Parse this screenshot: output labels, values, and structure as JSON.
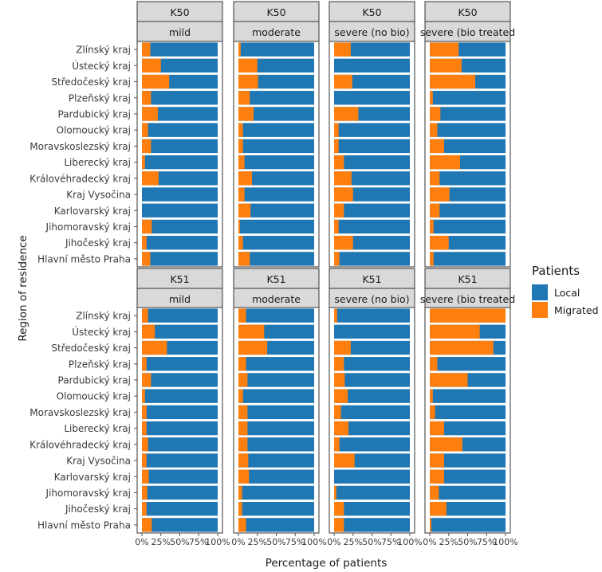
{
  "chart_data": {
    "type": "bar",
    "orientation": "horizontal",
    "stacked": true,
    "xlabel": "Percentage of patients",
    "ylabel": "Region of residence",
    "xlim": [
      0,
      100
    ],
    "x_tick_labels": [
      "0%",
      "25%",
      "50%",
      "75%",
      "100%"
    ],
    "legend": {
      "title": "Patients",
      "position": "right",
      "entries": [
        {
          "name": "Local",
          "color": "#1f77b4"
        },
        {
          "name": "Migrated",
          "color": "#ff7f0e"
        }
      ]
    },
    "categories": [
      "Zlínský kraj",
      "Ústecký kraj",
      "Středočeský kraj",
      "Plzeňský kraj",
      "Pardubický kraj",
      "Olomoucký kraj",
      "Moravskoslezský kraj",
      "Liberecký kraj",
      "Královéhradecký kraj",
      "Kraj Vysočina",
      "Karlovarský kraj",
      "Jihomoravský kraj",
      "Jihočeský kraj",
      "Hlavní město Praha"
    ],
    "value_series": "Migrated",
    "facets": [
      {
        "row_label": "K50",
        "col_label": "mild",
        "migrated": [
          11,
          25,
          36,
          12,
          21,
          8,
          12,
          4,
          22,
          0,
          0,
          13,
          6,
          11
        ]
      },
      {
        "row_label": "K50",
        "col_label": "moderate",
        "migrated": [
          3,
          25,
          26,
          15,
          20,
          6,
          6,
          8,
          18,
          8,
          16,
          2,
          6,
          15
        ]
      },
      {
        "row_label": "K50",
        "col_label": "severe (no bio)",
        "migrated": [
          22,
          0,
          24,
          0,
          32,
          6,
          6,
          13,
          23,
          25,
          13,
          6,
          25,
          7
        ]
      },
      {
        "row_label": "K50",
        "col_label": "severe (bio treated",
        "migrated": [
          38,
          42,
          60,
          4,
          14,
          10,
          19,
          40,
          13,
          26,
          13,
          5,
          25,
          5
        ]
      },
      {
        "row_label": "K51",
        "col_label": "mild",
        "migrated": [
          8,
          17,
          33,
          6,
          12,
          4,
          6,
          6,
          8,
          6,
          9,
          7,
          6,
          13
        ]
      },
      {
        "row_label": "K51",
        "col_label": "moderate",
        "migrated": [
          10,
          34,
          38,
          10,
          12,
          6,
          12,
          12,
          12,
          13,
          14,
          5,
          5,
          10
        ]
      },
      {
        "row_label": "K51",
        "col_label": "severe (no bio)",
        "migrated": [
          4,
          0,
          22,
          13,
          14,
          18,
          9,
          19,
          7,
          27,
          0,
          3,
          13,
          13
        ]
      },
      {
        "row_label": "K51",
        "col_label": "severe (bio treated",
        "migrated": [
          100,
          66,
          84,
          10,
          50,
          4,
          7,
          19,
          43,
          19,
          19,
          12,
          22,
          2
        ]
      }
    ]
  }
}
